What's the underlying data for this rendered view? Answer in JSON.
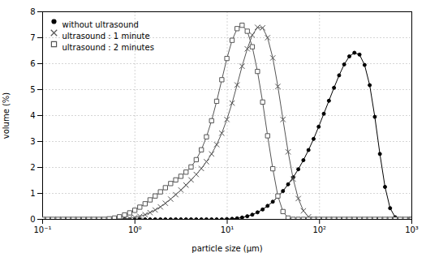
{
  "chart_data": {
    "type": "line",
    "xlabel": "particle size (μm)",
    "ylabel": "volume (%)",
    "log": "x",
    "grid": true,
    "legend": "upper left",
    "xlim": [
      0.1,
      1000
    ],
    "xticks": [
      {
        "value": 0.1,
        "label": "10⁻¹"
      },
      {
        "value": 1,
        "label": "10⁰"
      },
      {
        "value": 10,
        "label": "10¹"
      },
      {
        "value": 100,
        "label": "10²"
      },
      {
        "value": 1000,
        "label": "10³"
      }
    ],
    "ylim": [
      0,
      8
    ],
    "yticks": [
      0,
      1,
      2,
      3,
      4,
      5,
      6,
      7,
      8
    ],
    "x": [
      0.1,
      0.114,
      0.129,
      0.147,
      0.167,
      0.19,
      0.215,
      0.245,
      0.278,
      0.316,
      0.359,
      0.408,
      0.464,
      0.527,
      0.599,
      0.68,
      0.773,
      0.878,
      0.998,
      1.13,
      1.29,
      1.46,
      1.66,
      1.89,
      2.14,
      2.44,
      2.77,
      3.15,
      3.58,
      4.06,
      4.62,
      5.25,
      5.96,
      6.77,
      7.69,
      8.74,
      9.92,
      11.3,
      12.8,
      14.5,
      16.5,
      18.7,
      21.3,
      24.2,
      27.4,
      31.2,
      35.4,
      40.2,
      45.7,
      51.9,
      58.9,
      66.9,
      76.0,
      86.3,
      98.0,
      111.3,
      126.5,
      143.6,
      163.1,
      185.2,
      210.4,
      238.9,
      271.3,
      308.0,
      349.9,
      397.4,
      451.2,
      512.5,
      582.0,
      661.0,
      750.5,
      852.4,
      968.0,
      1000.0
    ],
    "series": [
      {
        "name": "without ultrasound",
        "color": "#000000",
        "marker": "circle",
        "values": [
          0.0,
          0.0,
          0.0,
          0.0,
          0.0,
          0.0,
          0.0,
          0.0,
          0.0,
          0.0,
          0.0,
          0.0,
          0.0,
          0.0,
          0.0,
          0.0,
          0.0,
          0.0,
          0.0,
          0.0,
          0.0,
          0.0,
          0.0,
          0.0,
          0.0,
          0.0,
          0.0,
          0.0,
          0.0,
          0.0,
          0.0,
          0.0,
          0.0,
          0.0,
          0.0,
          0.0,
          0.01,
          0.02,
          0.04,
          0.07,
          0.12,
          0.18,
          0.27,
          0.38,
          0.52,
          0.68,
          0.87,
          1.09,
          1.35,
          1.62,
          1.93,
          2.28,
          2.67,
          3.1,
          3.57,
          4.07,
          4.57,
          5.07,
          5.55,
          5.97,
          6.28,
          6.42,
          6.35,
          5.95,
          5.17,
          3.95,
          2.52,
          1.25,
          0.43,
          0.08,
          0.01,
          0.0,
          0.0,
          0.0
        ]
      },
      {
        "name": "ultrasound : 1 minute",
        "color": "#555555",
        "marker": "x",
        "values": [
          0.0,
          0.0,
          0.0,
          0.0,
          0.0,
          0.0,
          0.0,
          0.0,
          0.0,
          0.0,
          0.0,
          0.0,
          0.0,
          0.0,
          0.0,
          0.01,
          0.02,
          0.04,
          0.07,
          0.12,
          0.18,
          0.26,
          0.36,
          0.48,
          0.62,
          0.78,
          0.95,
          1.13,
          1.32,
          1.52,
          1.73,
          1.96,
          2.22,
          2.52,
          2.88,
          3.32,
          3.85,
          4.48,
          5.18,
          5.9,
          6.57,
          7.1,
          7.4,
          7.38,
          7.0,
          6.22,
          5.12,
          3.85,
          2.6,
          1.55,
          0.8,
          0.33,
          0.1,
          0.02,
          0.0,
          0.0,
          0.0,
          0.0,
          0.0,
          0.0,
          0.0,
          0.0,
          0.0,
          0.0,
          0.0,
          0.0,
          0.0,
          0.0,
          0.0,
          0.0,
          0.0,
          0.0,
          0.0,
          0.0
        ]
      },
      {
        "name": "ultrasound : 2 minutes",
        "color": "#555555",
        "marker": "square",
        "values": [
          0.0,
          0.0,
          0.0,
          0.0,
          0.0,
          0.0,
          0.0,
          0.0,
          0.0,
          0.0,
          0.0,
          0.0,
          0.0,
          0.02,
          0.05,
          0.1,
          0.17,
          0.25,
          0.35,
          0.47,
          0.6,
          0.75,
          0.9,
          1.06,
          1.22,
          1.38,
          1.52,
          1.66,
          1.82,
          2.02,
          2.3,
          2.68,
          3.18,
          3.8,
          4.55,
          5.38,
          6.2,
          6.9,
          7.35,
          7.48,
          7.25,
          6.65,
          5.7,
          4.52,
          3.22,
          1.95,
          0.9,
          0.3,
          0.05,
          0.0,
          0.0,
          0.0,
          0.0,
          0.0,
          0.0,
          0.0,
          0.0,
          0.0,
          0.0,
          0.0,
          0.0,
          0.0,
          0.0,
          0.0,
          0.0,
          0.0,
          0.0,
          0.0,
          0.0,
          0.0,
          0.0,
          0.0,
          0.0,
          0.0
        ]
      }
    ]
  }
}
